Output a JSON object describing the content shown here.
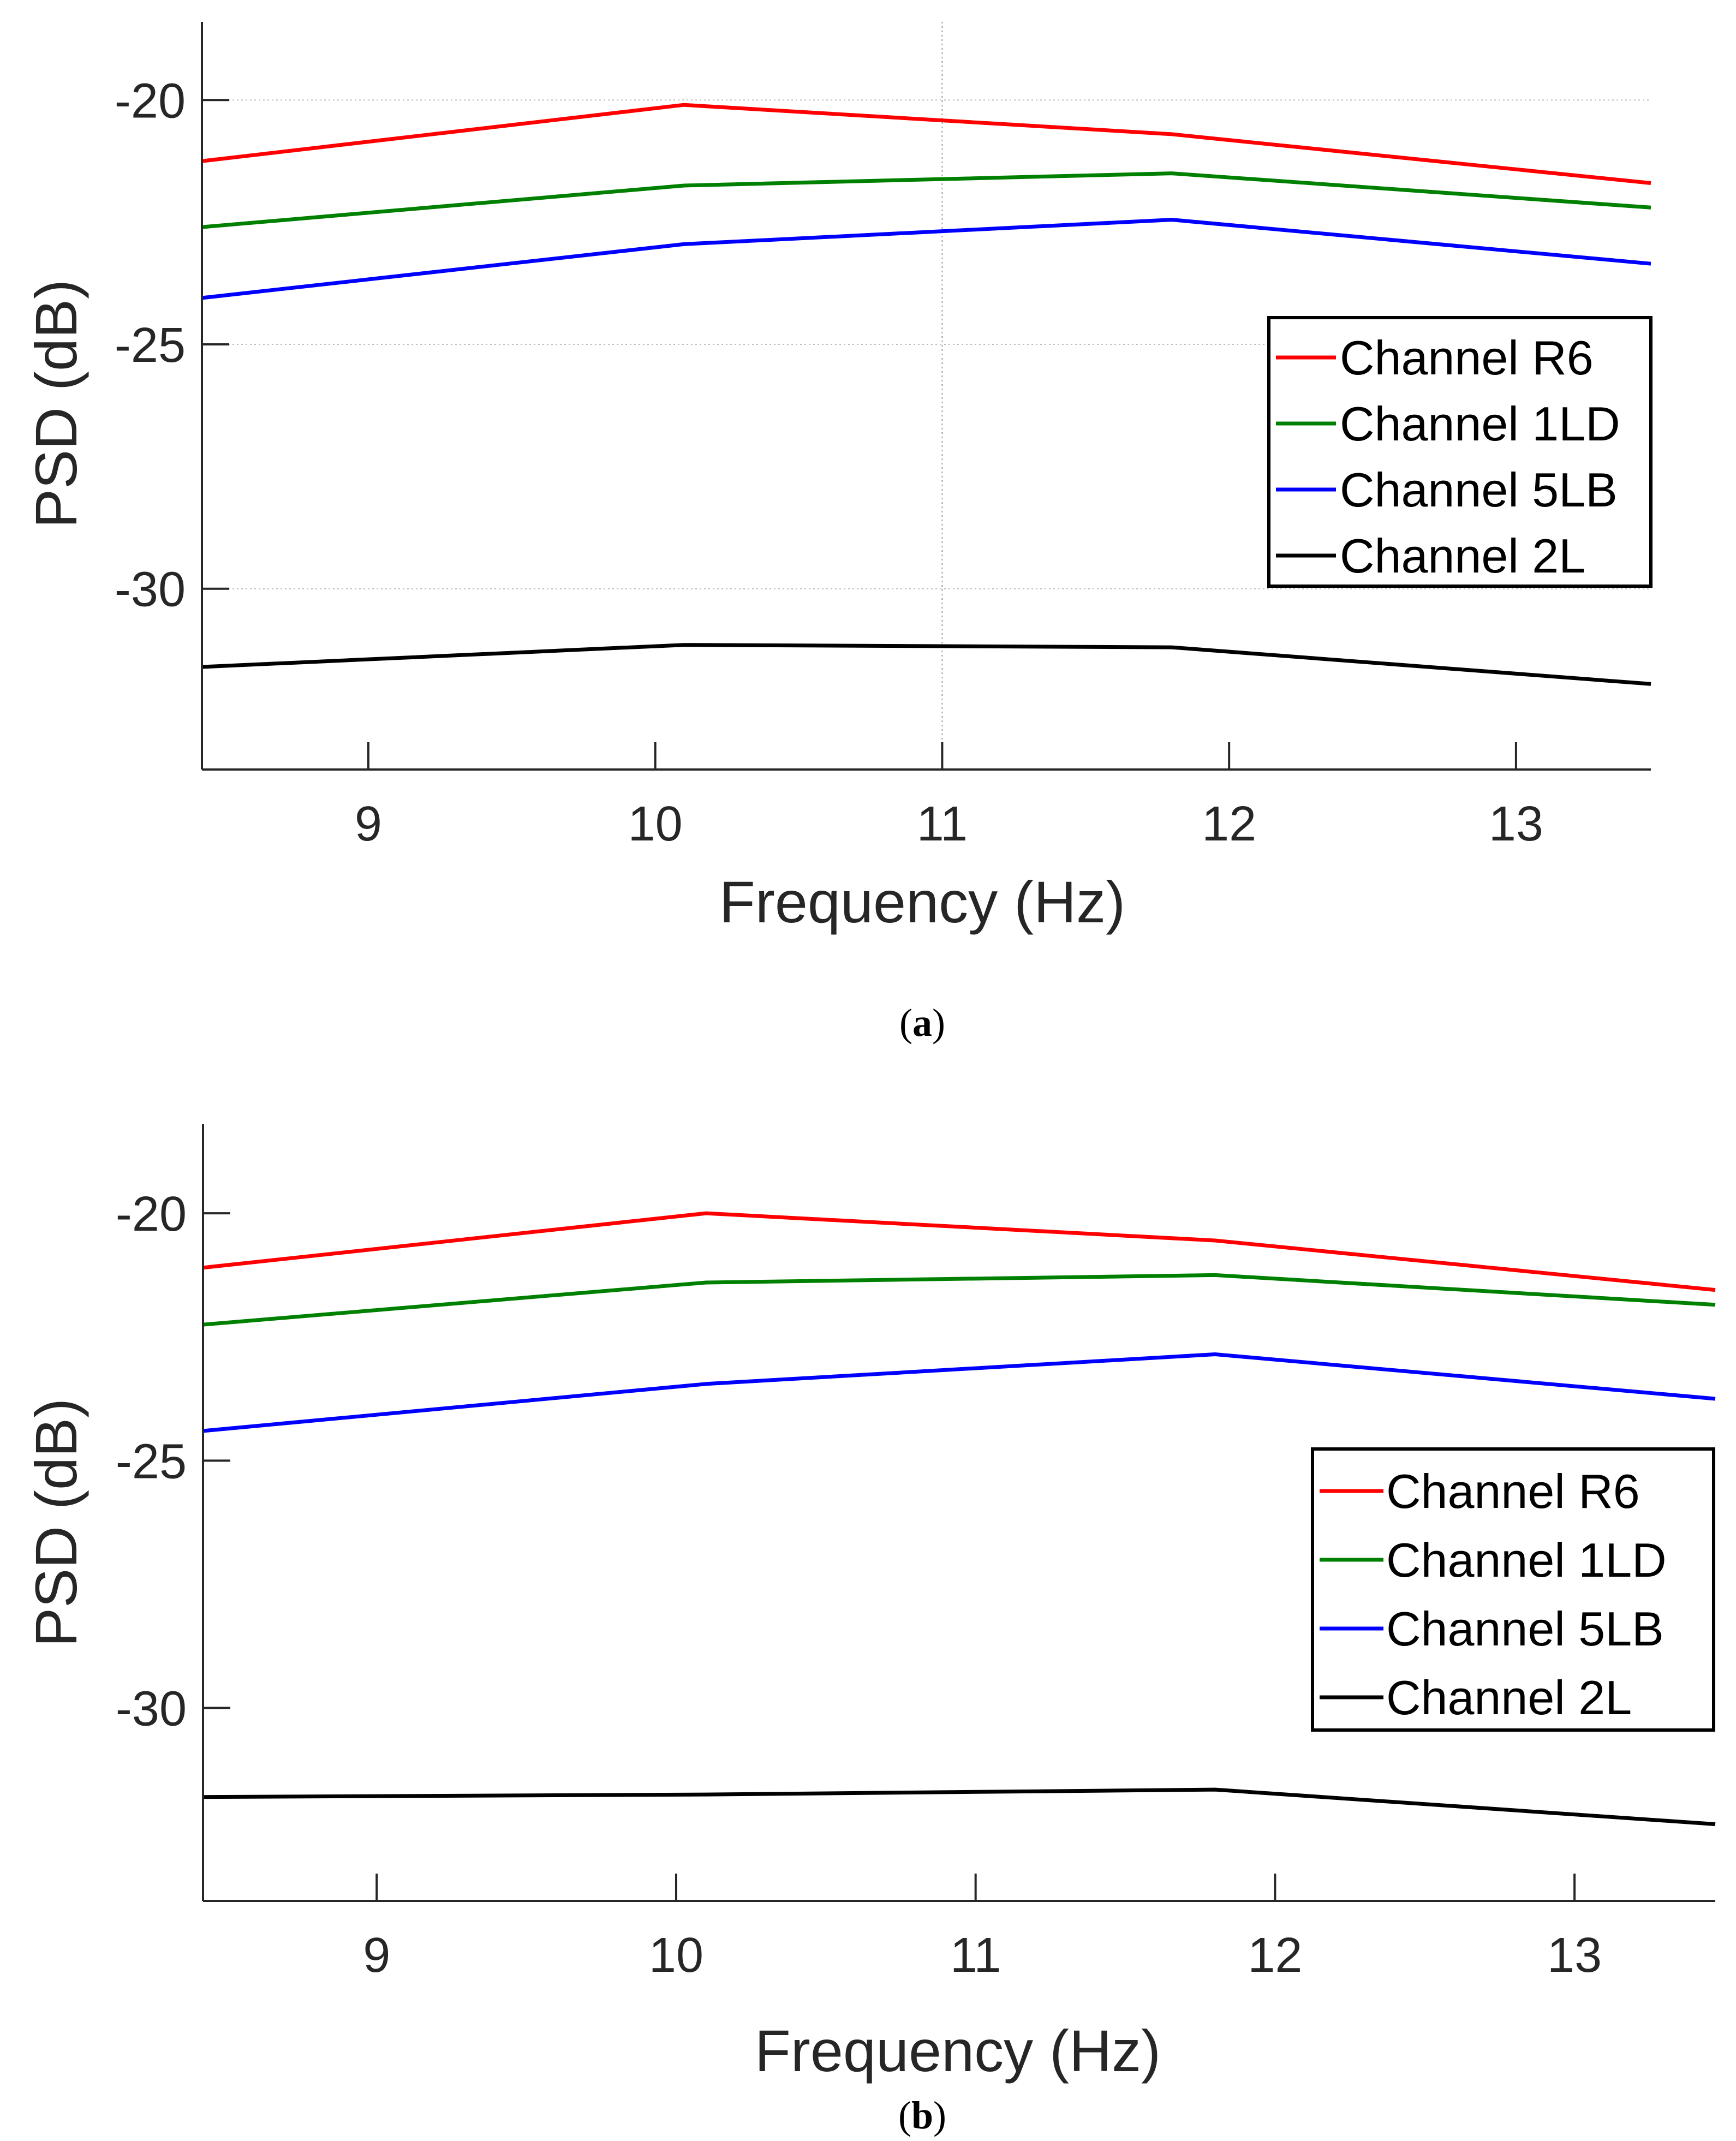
{
  "chart_data": [
    {
      "id": "a",
      "type": "line",
      "caption_letter": "a",
      "caption_open": "(",
      "caption_close": ")",
      "xlabel": "Frequency (Hz)",
      "ylabel": "PSD (dB)",
      "xlim": [
        8.42,
        13.47
      ],
      "ylim": [
        -33.7,
        -18.4
      ],
      "xticks": [
        9,
        10,
        11,
        12,
        13
      ],
      "yticks": [
        -20,
        -25,
        -30
      ],
      "grid": "partial",
      "legend_position": "right",
      "x": [
        8.42,
        10.1,
        11.8,
        13.47
      ],
      "series": [
        {
          "name": "Channel R6",
          "color": "#ff0000",
          "values": [
            -21.25,
            -20.1,
            -20.7,
            -21.7
          ]
        },
        {
          "name": "Channel 1LD",
          "color": "#008000",
          "values": [
            -22.6,
            -21.75,
            -21.5,
            -22.2
          ]
        },
        {
          "name": "Channel 5LB",
          "color": "#0000ff",
          "values": [
            -24.05,
            -22.95,
            -22.45,
            -23.35
          ]
        },
        {
          "name": "Channel 2L",
          "color": "#000000",
          "values": [
            -31.6,
            -31.15,
            -31.2,
            -31.95
          ]
        }
      ]
    },
    {
      "id": "b",
      "type": "line",
      "caption_letter": "b",
      "caption_open": "(",
      "caption_close": ")",
      "xlabel": "Frequency (Hz)",
      "ylabel": "PSD (dB)",
      "xlim": [
        8.42,
        13.47
      ],
      "ylim": [
        -33.9,
        -18.2
      ],
      "xticks": [
        9,
        10,
        11,
        12,
        13
      ],
      "yticks": [
        -20,
        -25,
        -30
      ],
      "grid": "off",
      "legend_position": "right",
      "x": [
        8.42,
        10.1,
        11.8,
        13.47
      ],
      "series": [
        {
          "name": "Channel R6",
          "color": "#ff0000",
          "values": [
            -21.1,
            -20.0,
            -20.55,
            -21.55
          ]
        },
        {
          "name": "Channel 1LD",
          "color": "#008000",
          "values": [
            -22.25,
            -21.4,
            -21.25,
            -21.85
          ]
        },
        {
          "name": "Channel 5LB",
          "color": "#0000ff",
          "values": [
            -24.4,
            -23.45,
            -22.85,
            -23.75
          ]
        },
        {
          "name": "Channel 2L",
          "color": "#000000",
          "values": [
            -31.8,
            -31.75,
            -31.65,
            -32.35
          ]
        }
      ]
    }
  ]
}
